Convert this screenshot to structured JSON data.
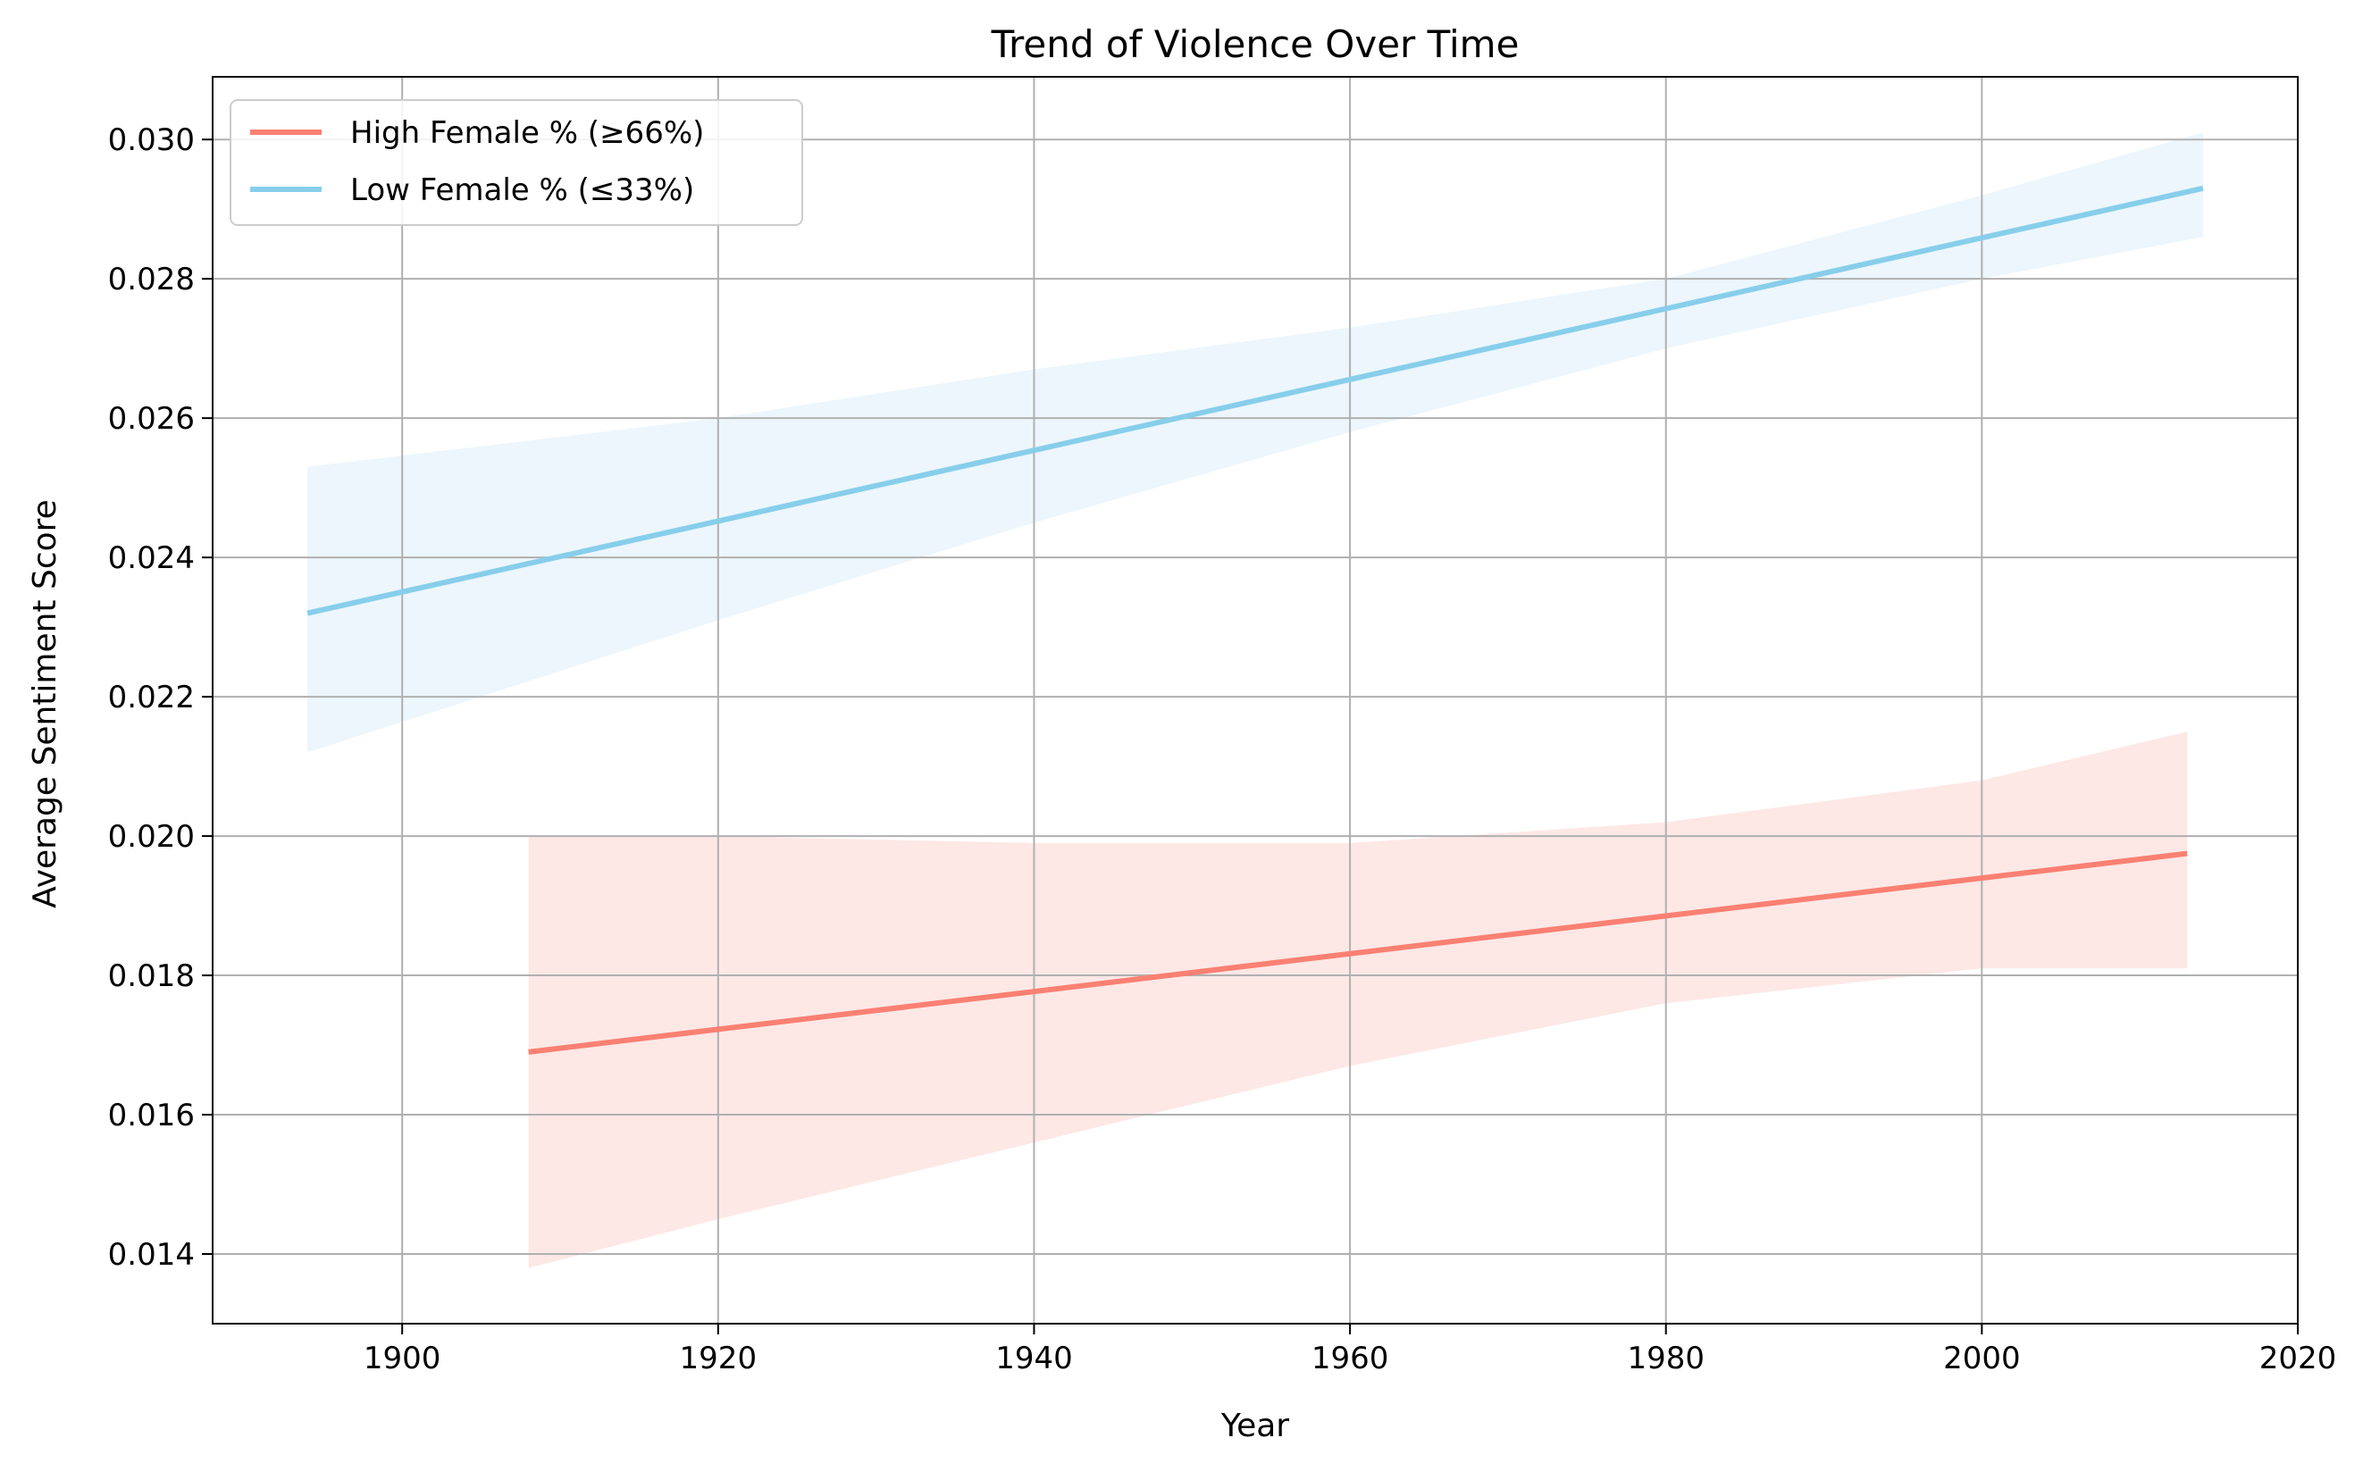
{
  "chart_data": {
    "type": "line",
    "title": "Trend of Violence Over Time",
    "xlabel": "Year",
    "ylabel": "Average Sentiment Score",
    "xlim": [
      1888,
      2020
    ],
    "ylim": [
      0.013,
      0.0309
    ],
    "xticks": [
      1900,
      1920,
      1940,
      1960,
      1980,
      2000,
      2020
    ],
    "xtick_labels": [
      "1900",
      "1920",
      "1940",
      "1960",
      "1980",
      "2000",
      "2020"
    ],
    "yticks": [
      0.014,
      0.016,
      0.018,
      0.02,
      0.022,
      0.024,
      0.026,
      0.028,
      0.03
    ],
    "ytick_labels": [
      "0.014",
      "0.016",
      "0.018",
      "0.020",
      "0.022",
      "0.024",
      "0.026",
      "0.028",
      "0.030"
    ],
    "grid": true,
    "legend_position": "upper-left",
    "series": [
      {
        "name": "High Female % (≥66%)",
        "color": "#fa8072",
        "band_color": "#fde8e6",
        "x": [
          1908,
          2013
        ],
        "y": [
          0.0169,
          0.01975
        ],
        "band_x": [
          1908,
          1920,
          1940,
          1960,
          1980,
          2000,
          2013
        ],
        "band_lower": [
          0.0138,
          0.0145,
          0.0156,
          0.0167,
          0.0176,
          0.0181,
          0.0181
        ],
        "band_upper": [
          0.02,
          0.02,
          0.0199,
          0.0199,
          0.0202,
          0.0208,
          0.0215
        ]
      },
      {
        "name": "Low Female % (≤33%)",
        "color": "#87ceeb",
        "band_color": "#ecf6fc",
        "x": [
          1894,
          2014
        ],
        "y": [
          0.0232,
          0.0293
        ],
        "band_x": [
          1894,
          1920,
          1940,
          1960,
          1980,
          2000,
          2014
        ],
        "band_lower": [
          0.0212,
          0.0231,
          0.0245,
          0.0258,
          0.027,
          0.028,
          0.0286
        ],
        "band_upper": [
          0.0253,
          0.026,
          0.0267,
          0.0273,
          0.028,
          0.0292,
          0.0301
        ]
      }
    ]
  }
}
